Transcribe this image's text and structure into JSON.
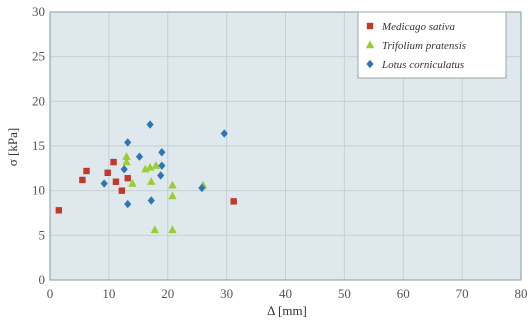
{
  "chart_data": {
    "type": "scatter",
    "xlabel": "Δ [mm]",
    "ylabel": "σ [kPa]",
    "xlim": [
      0,
      80
    ],
    "ylim": [
      0,
      30
    ],
    "x_ticks": [
      "0",
      "10",
      "20",
      "30",
      "40",
      "50",
      "60",
      "70",
      "80"
    ],
    "y_ticks": [
      "0",
      "5",
      "10",
      "15",
      "20",
      "25",
      "30"
    ],
    "x_tick_values": [
      0,
      10,
      20,
      30,
      40,
      50,
      60,
      70,
      80
    ],
    "y_tick_values": [
      0,
      5,
      10,
      15,
      20,
      25,
      30
    ],
    "grid": true,
    "legend_position": "top-right",
    "background_color": "#dfe9ed",
    "grid_color": "#c4d0d4",
    "series": [
      {
        "name": "Medicago sativa",
        "marker": "square",
        "color": "#c0392b",
        "points": [
          [
            1.5,
            7.8
          ],
          [
            5.5,
            11.2
          ],
          [
            6.2,
            12.2
          ],
          [
            9.8,
            12.0
          ],
          [
            10.8,
            13.2
          ],
          [
            11.2,
            11.0
          ],
          [
            12.2,
            10.0
          ],
          [
            13.2,
            11.4
          ],
          [
            31.2,
            8.8
          ]
        ]
      },
      {
        "name": "Trifolium pratensis",
        "marker": "triangle",
        "color": "#9acd32",
        "points": [
          [
            13.0,
            13.8
          ],
          [
            13.0,
            13.2
          ],
          [
            14.0,
            10.8
          ],
          [
            16.2,
            12.4
          ],
          [
            17.0,
            12.6
          ],
          [
            17.2,
            11.0
          ],
          [
            17.8,
            5.6
          ],
          [
            18.0,
            12.8
          ],
          [
            20.8,
            10.6
          ],
          [
            20.8,
            9.4
          ],
          [
            20.8,
            5.6
          ],
          [
            26.0,
            10.6
          ]
        ]
      },
      {
        "name": "Lotus corniculatus",
        "marker": "diamond",
        "color": "#2e75b6",
        "points": [
          [
            9.2,
            10.8
          ],
          [
            12.6,
            12.4
          ],
          [
            13.2,
            15.4
          ],
          [
            13.2,
            8.5
          ],
          [
            15.2,
            13.8
          ],
          [
            17.0,
            17.4
          ],
          [
            17.2,
            8.9
          ],
          [
            18.8,
            11.7
          ],
          [
            19.0,
            12.8
          ],
          [
            19.0,
            14.3
          ],
          [
            25.8,
            10.3
          ],
          [
            29.6,
            16.4
          ]
        ]
      }
    ]
  }
}
